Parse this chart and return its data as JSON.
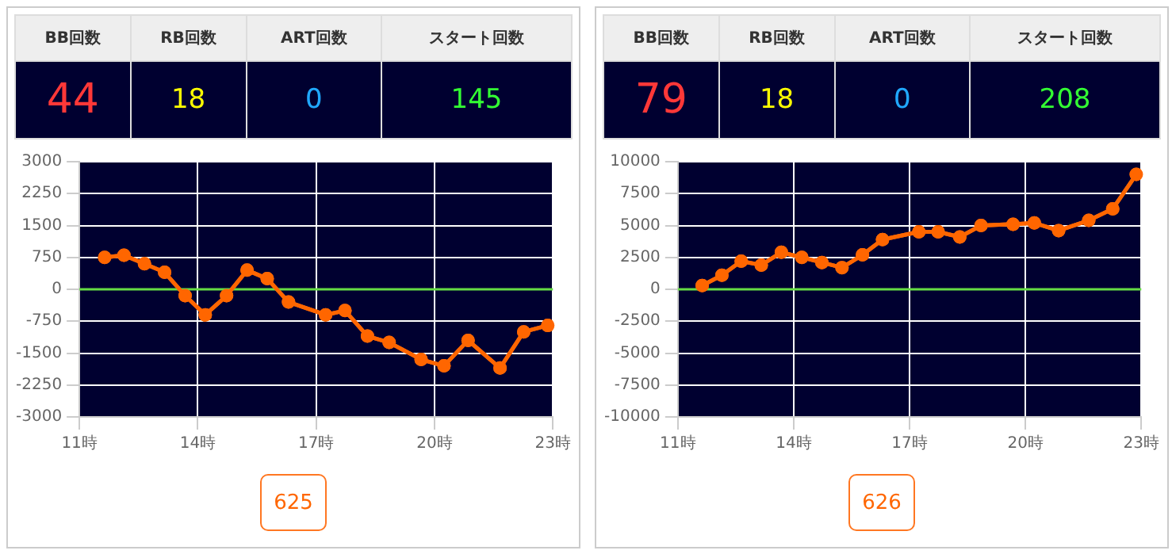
{
  "chart_data": [
    {
      "type": "other",
      "categories": [
        "BB回数",
        "RB回数",
        "ART回数",
        "スタート回数"
      ],
      "values": [
        44,
        18,
        0,
        145
      ],
      "data_labels": true
    },
    {
      "type": "line",
      "x": [
        11.64,
        12.13,
        12.65,
        13.16,
        13.68,
        14.19,
        14.73,
        15.25,
        15.76,
        16.3,
        17.24,
        17.73,
        18.3,
        18.85,
        19.66,
        20.24,
        20.85,
        21.66,
        22.26,
        22.87
      ],
      "series": [
        {
          "color": "#ff6600",
          "values": [
            750,
            800,
            600,
            400,
            -150,
            -600,
            -150,
            450,
            250,
            -300,
            -600,
            -500,
            -1100,
            -1250,
            -1650,
            -1800,
            -1200,
            -1850,
            -1000,
            -850
          ]
        }
      ],
      "xlim": [
        11,
        23
      ],
      "xticks": [
        {
          "value": 11,
          "label": "11時"
        },
        {
          "value": 14,
          "label": "14時"
        },
        {
          "value": 17,
          "label": "17時"
        },
        {
          "value": 20,
          "label": "20時"
        },
        {
          "value": 23,
          "label": "23時"
        }
      ],
      "ylim": [
        -3000,
        3000
      ],
      "yticks": [
        -3000,
        -2250,
        -1500,
        -750,
        0,
        750,
        1500,
        2250,
        3000
      ],
      "grid": true,
      "marker": "circle",
      "line_style": "solid",
      "ref_lines": [
        {
          "axis": "y",
          "value": 0,
          "color": "#66dd44"
        }
      ],
      "annotations": [
        "625"
      ]
    },
    {
      "type": "other",
      "categories": [
        "BB回数",
        "RB回数",
        "ART回数",
        "スタート回数"
      ],
      "values": [
        79,
        18,
        0,
        208
      ],
      "data_labels": true
    },
    {
      "type": "line",
      "x": [
        11.63,
        12.14,
        12.64,
        13.16,
        13.68,
        14.21,
        14.73,
        15.25,
        15.78,
        16.3,
        17.24,
        17.74,
        18.3,
        18.85,
        19.68,
        20.23,
        20.86,
        21.64,
        22.26,
        22.87
      ],
      "series": [
        {
          "color": "#ff6600",
          "values": [
            300,
            1100,
            2200,
            1900,
            2900,
            2500,
            2100,
            1700,
            2700,
            3900,
            4500,
            4500,
            4100,
            5000,
            5100,
            5200,
            4600,
            5400,
            6300,
            9000
          ]
        }
      ],
      "xlim": [
        11,
        23
      ],
      "xticks": [
        {
          "value": 11,
          "label": "11時"
        },
        {
          "value": 14,
          "label": "14時"
        },
        {
          "value": 17,
          "label": "17時"
        },
        {
          "value": 20,
          "label": "20時"
        },
        {
          "value": 23,
          "label": "23時"
        }
      ],
      "ylim": [
        -10000,
        10000
      ],
      "yticks": [
        -10000,
        -7500,
        -5000,
        -2500,
        0,
        2500,
        5000,
        7500,
        10000
      ],
      "grid": true,
      "marker": "circle",
      "line_style": "solid",
      "ref_lines": [
        {
          "axis": "y",
          "value": 0,
          "color": "#66dd44"
        }
      ],
      "annotations": [
        "626"
      ]
    }
  ]
}
